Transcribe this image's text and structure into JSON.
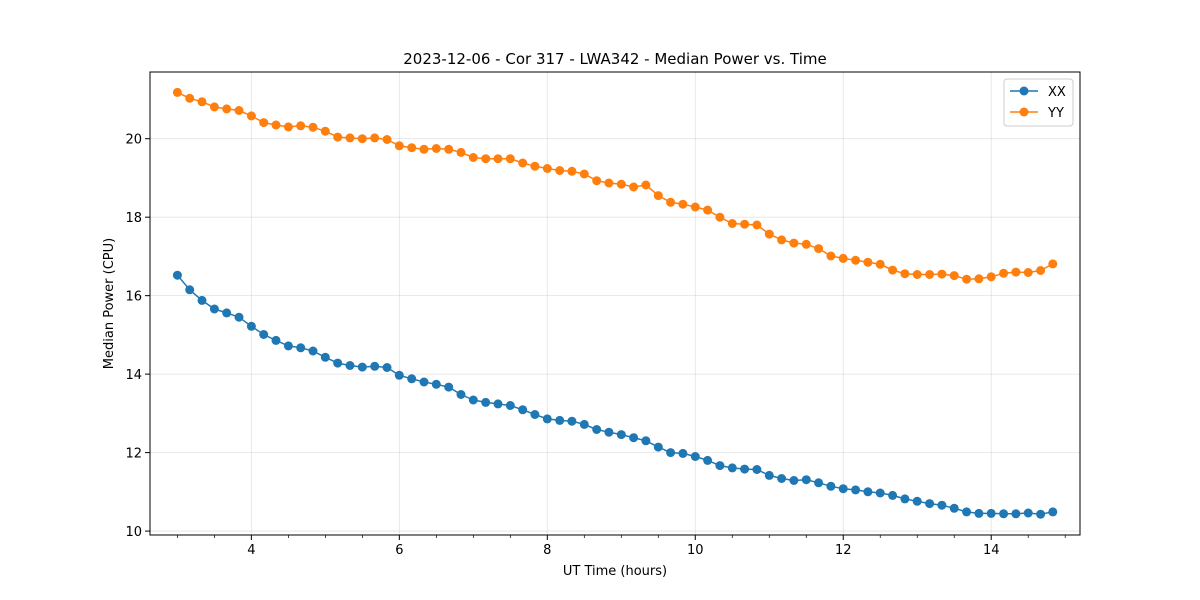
{
  "chart_data": {
    "type": "line",
    "title": "2023-12-06 - Cor 317 - LWA342 - Median Power vs. Time",
    "xlabel": "UT Time (hours)",
    "ylabel": "Median Power (CPU)",
    "xlim": [
      2.63,
      15.2
    ],
    "ylim": [
      9.9,
      21.7
    ],
    "xticks": [
      4,
      6,
      8,
      10,
      12,
      14
    ],
    "xtick_labels": [
      "4",
      "6",
      "8",
      "10",
      "12",
      "14"
    ],
    "yticks": [
      10,
      12,
      14,
      16,
      18,
      20
    ],
    "ytick_labels": [
      "10",
      "12",
      "14",
      "16",
      "18",
      "20"
    ],
    "grid": true,
    "legend_position": "top-right",
    "x": [
      3.0,
      3.167,
      3.333,
      3.5,
      3.667,
      3.833,
      4.0,
      4.167,
      4.333,
      4.5,
      4.667,
      4.833,
      5.0,
      5.167,
      5.333,
      5.5,
      5.667,
      5.833,
      6.0,
      6.167,
      6.333,
      6.5,
      6.667,
      6.833,
      7.0,
      7.167,
      7.333,
      7.5,
      7.667,
      7.833,
      8.0,
      8.167,
      8.333,
      8.5,
      8.667,
      8.833,
      9.0,
      9.167,
      9.333,
      9.5,
      9.667,
      9.833,
      10.0,
      10.167,
      10.333,
      10.5,
      10.667,
      10.833,
      11.0,
      11.167,
      11.333,
      11.5,
      11.667,
      11.833,
      12.0,
      12.167,
      12.333,
      12.5,
      12.667,
      12.833,
      13.0,
      13.167,
      13.333,
      13.5,
      13.667,
      13.833,
      14.0,
      14.167,
      14.333,
      14.5,
      14.667,
      14.833
    ],
    "series": [
      {
        "name": "XX",
        "color": "#1f77b4",
        "values": [
          16.52,
          16.15,
          15.88,
          15.66,
          15.56,
          15.45,
          15.22,
          15.01,
          14.86,
          14.72,
          14.67,
          14.59,
          14.43,
          14.28,
          14.22,
          14.18,
          14.2,
          14.17,
          13.97,
          13.88,
          13.8,
          13.74,
          13.67,
          13.48,
          13.34,
          13.28,
          13.24,
          13.2,
          13.09,
          12.97,
          12.86,
          12.82,
          12.8,
          12.72,
          12.59,
          12.52,
          12.46,
          12.38,
          12.3,
          12.14,
          12.0,
          11.98,
          11.9,
          11.8,
          11.67,
          11.61,
          11.58,
          11.57,
          11.42,
          11.34,
          11.29,
          11.31,
          11.23,
          11.14,
          11.08,
          11.05,
          11.0,
          10.97,
          10.91,
          10.82,
          10.76,
          10.7,
          10.66,
          10.58,
          10.49,
          10.45,
          10.45,
          10.44,
          10.44,
          10.46,
          10.43,
          10.49
        ]
      },
      {
        "name": "YY",
        "color": "#ff7f0e",
        "values": [
          21.18,
          21.03,
          20.94,
          20.81,
          20.76,
          20.72,
          20.58,
          20.41,
          20.35,
          20.3,
          20.33,
          20.29,
          20.19,
          20.04,
          20.02,
          20.0,
          20.02,
          19.98,
          19.82,
          19.77,
          19.73,
          19.75,
          19.73,
          19.65,
          19.52,
          19.49,
          19.49,
          19.49,
          19.38,
          19.3,
          19.24,
          19.19,
          19.17,
          19.1,
          18.93,
          18.87,
          18.84,
          18.77,
          18.82,
          18.55,
          18.38,
          18.33,
          18.26,
          18.18,
          18.0,
          17.84,
          17.82,
          17.8,
          17.57,
          17.42,
          17.34,
          17.31,
          17.2,
          17.01,
          16.95,
          16.9,
          16.85,
          16.8,
          16.65,
          16.56,
          16.54,
          16.54,
          16.55,
          16.51,
          16.42,
          16.43,
          16.48,
          16.57,
          16.6,
          16.59,
          16.64,
          16.81
        ]
      }
    ]
  }
}
